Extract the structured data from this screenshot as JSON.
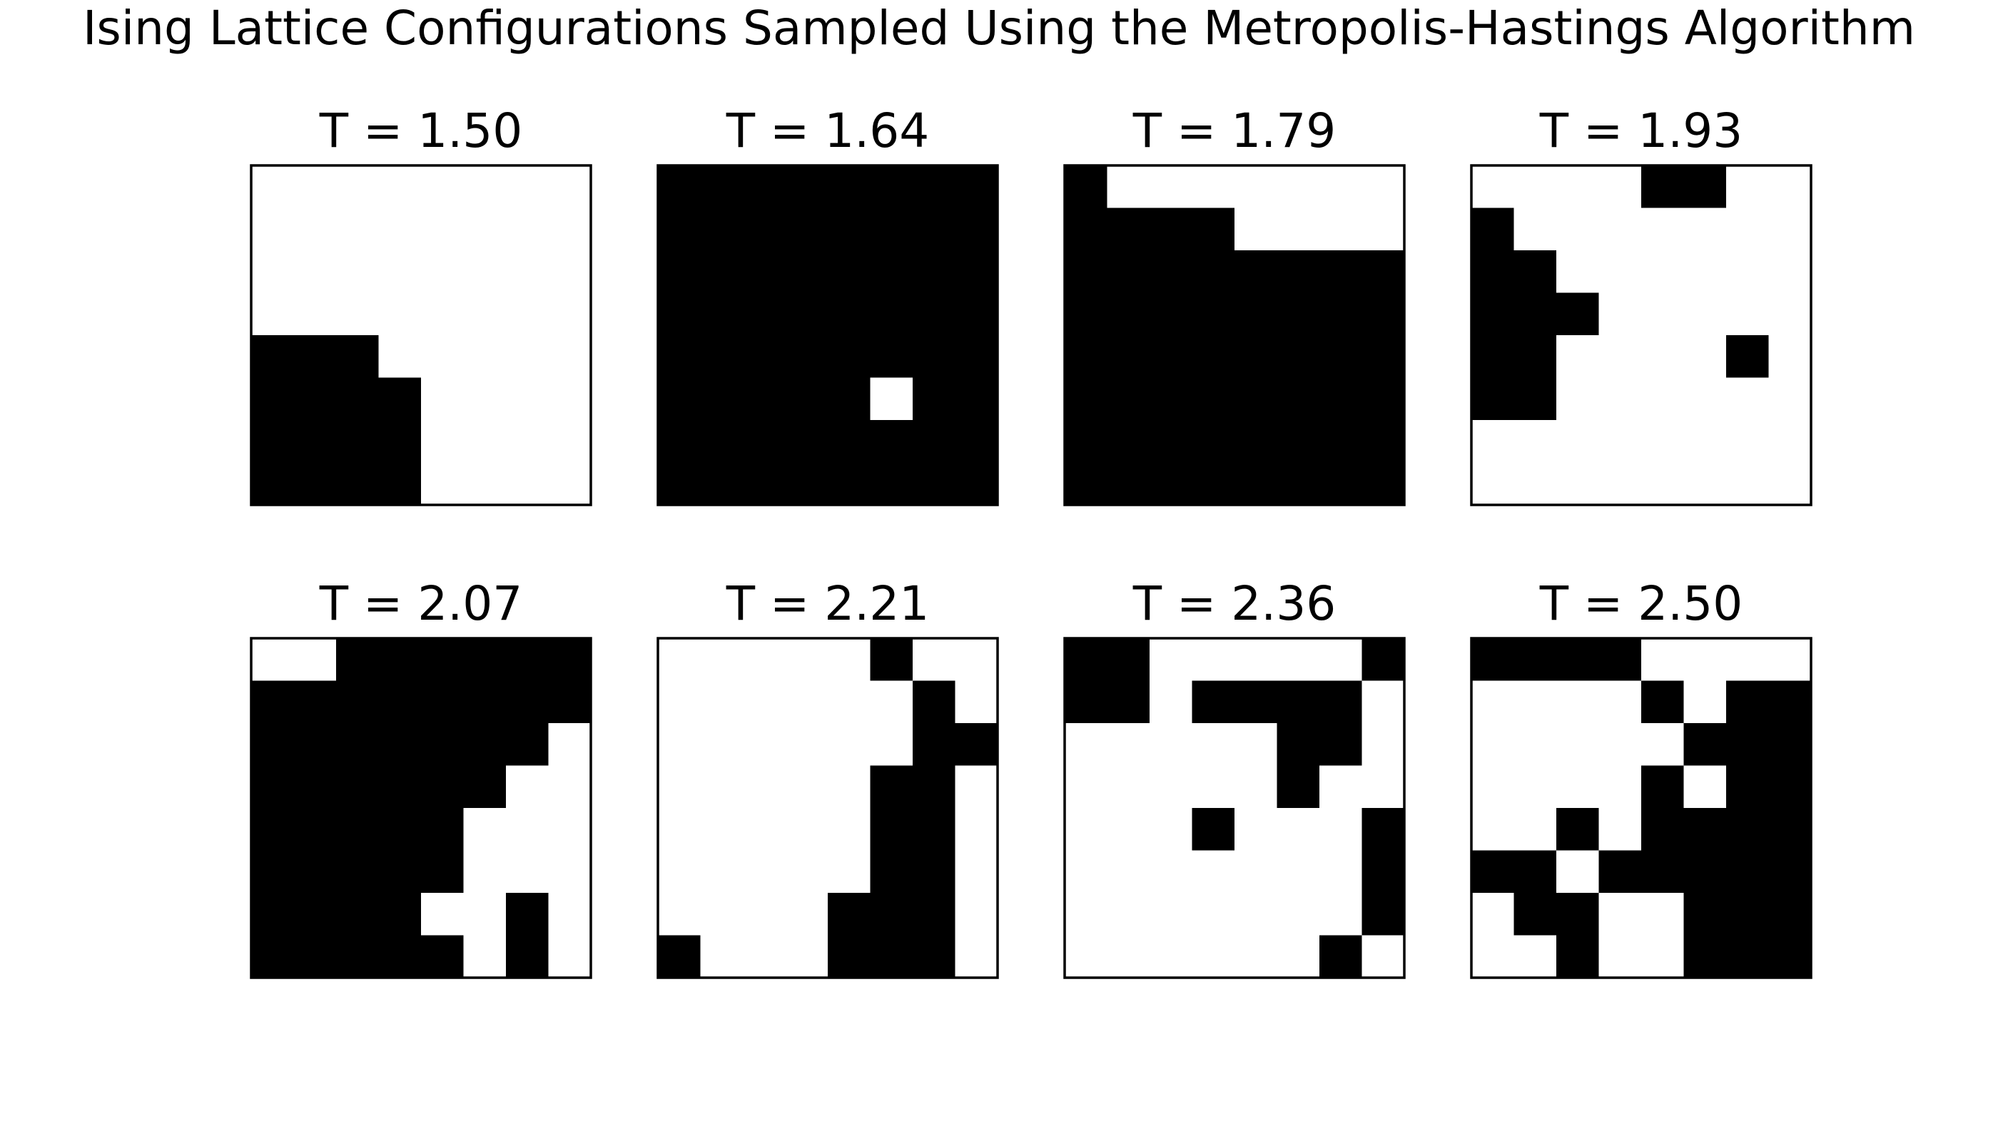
{
  "figure": {
    "title": "Ising Lattice Configurations Sampled Using the Metropolis-Hastings Algorithm"
  },
  "chart_data": {
    "type": "heatmap",
    "title": "Ising Lattice Configurations Sampled Using the Metropolis-Hastings Algorithm",
    "colormap": {
      "1": "#000000",
      "0": "#ffffff"
    },
    "grid": false,
    "axes_visible": false,
    "lattice_size": 8,
    "panels": [
      {
        "title": "T = 1.50",
        "temperature": 1.5,
        "spins": [
          [
            0,
            0,
            0,
            0,
            0,
            0,
            0,
            0
          ],
          [
            0,
            0,
            0,
            0,
            0,
            0,
            0,
            0
          ],
          [
            0,
            0,
            0,
            0,
            0,
            0,
            0,
            0
          ],
          [
            0,
            0,
            0,
            0,
            0,
            0,
            0,
            0
          ],
          [
            1,
            1,
            1,
            0,
            0,
            0,
            0,
            0
          ],
          [
            1,
            1,
            1,
            1,
            0,
            0,
            0,
            0
          ],
          [
            1,
            1,
            1,
            1,
            0,
            0,
            0,
            0
          ],
          [
            1,
            1,
            1,
            1,
            0,
            0,
            0,
            0
          ]
        ]
      },
      {
        "title": "T = 1.64",
        "temperature": 1.64,
        "spins": [
          [
            1,
            1,
            1,
            1,
            1,
            1,
            1,
            1
          ],
          [
            1,
            1,
            1,
            1,
            1,
            1,
            1,
            1
          ],
          [
            1,
            1,
            1,
            1,
            1,
            1,
            1,
            1
          ],
          [
            1,
            1,
            1,
            1,
            1,
            1,
            1,
            1
          ],
          [
            1,
            1,
            1,
            1,
            1,
            1,
            1,
            1
          ],
          [
            1,
            1,
            1,
            1,
            1,
            0,
            1,
            1
          ],
          [
            1,
            1,
            1,
            1,
            1,
            1,
            1,
            1
          ],
          [
            1,
            1,
            1,
            1,
            1,
            1,
            1,
            1
          ]
        ]
      },
      {
        "title": "T = 1.79",
        "temperature": 1.79,
        "spins": [
          [
            1,
            0,
            0,
            0,
            0,
            0,
            0,
            0
          ],
          [
            1,
            1,
            1,
            1,
            0,
            0,
            0,
            0
          ],
          [
            1,
            1,
            1,
            1,
            1,
            1,
            1,
            1
          ],
          [
            1,
            1,
            1,
            1,
            1,
            1,
            1,
            1
          ],
          [
            1,
            1,
            1,
            1,
            1,
            1,
            1,
            1
          ],
          [
            1,
            1,
            1,
            1,
            1,
            1,
            1,
            1
          ],
          [
            1,
            1,
            1,
            1,
            1,
            1,
            1,
            1
          ],
          [
            1,
            1,
            1,
            1,
            1,
            1,
            1,
            1
          ]
        ]
      },
      {
        "title": "T = 1.93",
        "temperature": 1.93,
        "spins": [
          [
            0,
            0,
            0,
            0,
            1,
            1,
            0,
            0
          ],
          [
            1,
            0,
            0,
            0,
            0,
            0,
            0,
            0
          ],
          [
            1,
            1,
            0,
            0,
            0,
            0,
            0,
            0
          ],
          [
            1,
            1,
            1,
            0,
            0,
            0,
            0,
            0
          ],
          [
            1,
            1,
            0,
            0,
            0,
            0,
            1,
            0
          ],
          [
            1,
            1,
            0,
            0,
            0,
            0,
            0,
            0
          ],
          [
            0,
            0,
            0,
            0,
            0,
            0,
            0,
            0
          ],
          [
            0,
            0,
            0,
            0,
            0,
            0,
            0,
            0
          ]
        ]
      },
      {
        "title": "T = 2.07",
        "temperature": 2.07,
        "spins": [
          [
            0,
            0,
            1,
            1,
            1,
            1,
            1,
            1
          ],
          [
            1,
            1,
            1,
            1,
            1,
            1,
            1,
            1
          ],
          [
            1,
            1,
            1,
            1,
            1,
            1,
            1,
            0
          ],
          [
            1,
            1,
            1,
            1,
            1,
            1,
            0,
            0
          ],
          [
            1,
            1,
            1,
            1,
            1,
            0,
            0,
            0
          ],
          [
            1,
            1,
            1,
            1,
            1,
            0,
            0,
            0
          ],
          [
            1,
            1,
            1,
            1,
            0,
            0,
            1,
            0
          ],
          [
            1,
            1,
            1,
            1,
            1,
            0,
            1,
            0
          ]
        ]
      },
      {
        "title": "T = 2.21",
        "temperature": 2.21,
        "spins": [
          [
            0,
            0,
            0,
            0,
            0,
            1,
            0,
            0
          ],
          [
            0,
            0,
            0,
            0,
            0,
            0,
            1,
            0
          ],
          [
            0,
            0,
            0,
            0,
            0,
            0,
            1,
            1
          ],
          [
            0,
            0,
            0,
            0,
            0,
            1,
            1,
            0
          ],
          [
            0,
            0,
            0,
            0,
            0,
            1,
            1,
            0
          ],
          [
            0,
            0,
            0,
            0,
            0,
            1,
            1,
            0
          ],
          [
            0,
            0,
            0,
            0,
            1,
            1,
            1,
            0
          ],
          [
            1,
            0,
            0,
            0,
            1,
            1,
            1,
            0
          ]
        ]
      },
      {
        "title": "T = 2.36",
        "temperature": 2.36,
        "spins": [
          [
            1,
            1,
            0,
            0,
            0,
            0,
            0,
            1
          ],
          [
            1,
            1,
            0,
            1,
            1,
            1,
            1,
            0
          ],
          [
            0,
            0,
            0,
            0,
            0,
            1,
            1,
            0
          ],
          [
            0,
            0,
            0,
            0,
            0,
            1,
            0,
            0
          ],
          [
            0,
            0,
            0,
            1,
            0,
            0,
            0,
            1
          ],
          [
            0,
            0,
            0,
            0,
            0,
            0,
            0,
            1
          ],
          [
            0,
            0,
            0,
            0,
            0,
            0,
            0,
            1
          ],
          [
            0,
            0,
            0,
            0,
            0,
            0,
            1,
            0
          ]
        ]
      },
      {
        "title": "T = 2.50",
        "temperature": 2.5,
        "spins": [
          [
            1,
            1,
            1,
            1,
            0,
            0,
            0,
            0
          ],
          [
            0,
            0,
            0,
            0,
            1,
            0,
            1,
            1
          ],
          [
            0,
            0,
            0,
            0,
            0,
            1,
            1,
            1
          ],
          [
            0,
            0,
            0,
            0,
            1,
            0,
            1,
            1
          ],
          [
            0,
            0,
            1,
            0,
            1,
            1,
            1,
            1
          ],
          [
            1,
            1,
            0,
            1,
            1,
            1,
            1,
            1
          ],
          [
            0,
            1,
            1,
            0,
            0,
            1,
            1,
            1
          ],
          [
            0,
            0,
            1,
            0,
            0,
            1,
            1,
            1
          ]
        ]
      }
    ]
  }
}
